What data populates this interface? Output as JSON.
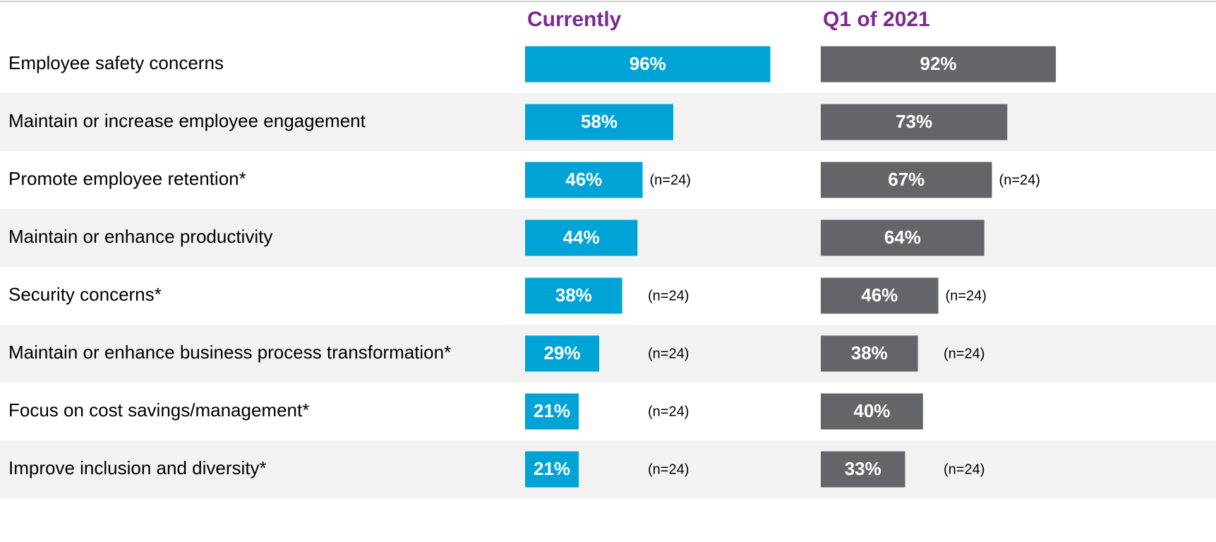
{
  "chart_data": {
    "type": "bar",
    "orientation": "horizontal",
    "categories": [
      "Employee safety concerns",
      "Maintain or increase employee engagement",
      "Promote employee retention*",
      "Maintain or enhance productivity",
      "Security concerns*",
      "Maintain or enhance business process transformation*",
      "Focus on cost savings/management*",
      "Improve inclusion and diversity*"
    ],
    "series": [
      {
        "name": "Currently",
        "color": "#00a3d6",
        "values": [
          96,
          58,
          46,
          44,
          38,
          29,
          21,
          21
        ],
        "value_labels": [
          "96%",
          "58%",
          "46%",
          "44%",
          "38%",
          "29%",
          "21%",
          "21%"
        ],
        "notes": [
          null,
          null,
          "(n=24)",
          null,
          "(n=24)",
          "(n=24)",
          "(n=24)",
          "(n=24)"
        ]
      },
      {
        "name": "Q1 of 2021",
        "color": "#636569",
        "values": [
          92,
          73,
          67,
          64,
          46,
          38,
          40,
          33
        ],
        "value_labels": [
          "92%",
          "73%",
          "67%",
          "64%",
          "46%",
          "38%",
          "40%",
          "33%"
        ],
        "notes": [
          null,
          null,
          "(n=24)",
          null,
          "(n=24)",
          "(n=24)",
          null,
          "(n=24)"
        ]
      }
    ]
  }
}
